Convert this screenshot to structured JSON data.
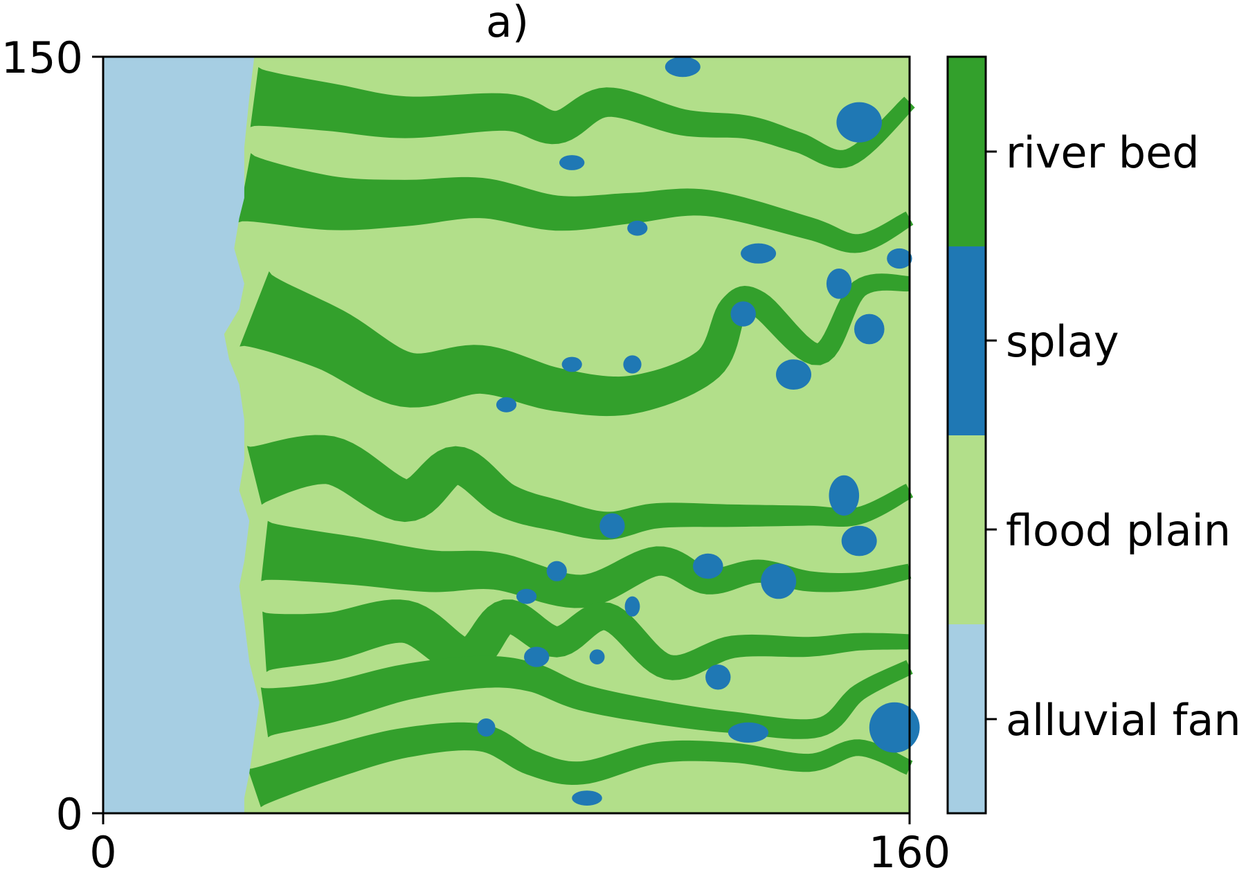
{
  "chart_data": {
    "type": "heatmap",
    "title": "a)",
    "xlabel": "",
    "ylabel": "",
    "xlim": [
      0,
      160
    ],
    "ylim": [
      0,
      150
    ],
    "x_ticks": [
      "0",
      "160"
    ],
    "y_ticks": [
      "0",
      "150"
    ],
    "grid": false,
    "colorbar": {
      "categories": [
        "alluvial fan",
        "flood plain",
        "splay",
        "river bed"
      ],
      "colors": [
        "#a6cee3",
        "#b2df8a",
        "#1f78b4",
        "#33a02c"
      ]
    },
    "channels": [
      {
        "points": [
          [
            30,
            142
          ],
          [
            45,
            140
          ],
          [
            60,
            138
          ],
          [
            80,
            139
          ],
          [
            90,
            136
          ],
          [
            100,
            141
          ],
          [
            115,
            137
          ],
          [
            128,
            136
          ],
          [
            138,
            133
          ],
          [
            148,
            130
          ],
          [
            160,
            141
          ]
        ],
        "width_start": 12,
        "width_end": 3
      },
      {
        "points": [
          [
            28,
            124
          ],
          [
            45,
            121
          ],
          [
            60,
            121
          ],
          [
            75,
            122
          ],
          [
            90,
            119
          ],
          [
            105,
            120
          ],
          [
            120,
            121
          ],
          [
            140,
            116
          ],
          [
            150,
            113
          ],
          [
            160,
            118
          ]
        ],
        "width_start": 14,
        "width_end": 3
      },
      {
        "points": [
          [
            30,
            100
          ],
          [
            45,
            94
          ],
          [
            60,
            86
          ],
          [
            75,
            88
          ],
          [
            90,
            84
          ],
          [
            105,
            83
          ],
          [
            120,
            89
          ],
          [
            125,
            100
          ],
          [
            130,
            101
          ],
          [
            142,
            91
          ],
          [
            150,
            104
          ],
          [
            160,
            105
          ]
        ],
        "width_start": 16,
        "width_end": 3
      },
      {
        "points": [
          [
            30,
            67
          ],
          [
            45,
            70
          ],
          [
            60,
            62
          ],
          [
            70,
            69
          ],
          [
            80,
            62
          ],
          [
            90,
            59
          ],
          [
            100,
            57
          ],
          [
            110,
            59
          ],
          [
            125,
            59
          ],
          [
            140,
            59
          ],
          [
            150,
            59
          ],
          [
            160,
            64
          ]
        ],
        "width_start": 12,
        "width_end": 3
      },
      {
        "points": [
          [
            32,
            52
          ],
          [
            50,
            50
          ],
          [
            65,
            48
          ],
          [
            78,
            48
          ],
          [
            95,
            44
          ],
          [
            110,
            50
          ],
          [
            120,
            46
          ],
          [
            130,
            48
          ],
          [
            140,
            46
          ],
          [
            150,
            46
          ],
          [
            160,
            48
          ]
        ],
        "width_start": 12,
        "width_end": 3
      },
      {
        "points": [
          [
            32,
            34
          ],
          [
            45,
            35
          ],
          [
            60,
            38
          ],
          [
            72,
            31
          ],
          [
            80,
            39
          ],
          [
            90,
            34
          ],
          [
            100,
            39
          ],
          [
            112,
            29
          ],
          [
            125,
            33
          ],
          [
            140,
            33
          ],
          [
            150,
            34
          ],
          [
            160,
            34
          ]
        ],
        "width_start": 12,
        "width_end": 3
      },
      {
        "points": [
          [
            32,
            20
          ],
          [
            45,
            22
          ],
          [
            60,
            26
          ],
          [
            75,
            28
          ],
          [
            85,
            27
          ],
          [
            95,
            23
          ],
          [
            110,
            20
          ],
          [
            125,
            18
          ],
          [
            142,
            17
          ],
          [
            150,
            24
          ],
          [
            160,
            29
          ]
        ],
        "width_start": 10,
        "width_end": 3
      },
      {
        "points": [
          [
            30,
            5
          ],
          [
            45,
            10
          ],
          [
            60,
            14
          ],
          [
            75,
            15
          ],
          [
            85,
            10
          ],
          [
            95,
            8
          ],
          [
            110,
            12
          ],
          [
            125,
            12
          ],
          [
            140,
            10
          ],
          [
            150,
            13
          ],
          [
            160,
            9
          ]
        ],
        "width_start": 8,
        "width_end": 3
      }
    ],
    "splays": [
      [
        115,
        148,
        3.5,
        2.0
      ],
      [
        93,
        129,
        2.5,
        1.5
      ],
      [
        150,
        137,
        4.5,
        4.0
      ],
      [
        106,
        116,
        2.0,
        1.5
      ],
      [
        130,
        111,
        3.5,
        2.0
      ],
      [
        158,
        110,
        2.5,
        2.0
      ],
      [
        146,
        105,
        2.5,
        3.0
      ],
      [
        127,
        99,
        2.5,
        2.5
      ],
      [
        152,
        96,
        3.0,
        3.0
      ],
      [
        137,
        87,
        3.5,
        3.0
      ],
      [
        93,
        89,
        2.0,
        1.5
      ],
      [
        105,
        89,
        1.8,
        1.8
      ],
      [
        80,
        81,
        2.0,
        1.5
      ],
      [
        147,
        63,
        3.0,
        4.0
      ],
      [
        101,
        57,
        2.5,
        2.5
      ],
      [
        150,
        54,
        3.5,
        3.0
      ],
      [
        120,
        49,
        3.0,
        2.5
      ],
      [
        90,
        48,
        2.0,
        2.0
      ],
      [
        134,
        46,
        3.5,
        3.5
      ],
      [
        84,
        43,
        2.0,
        1.5
      ],
      [
        105,
        41,
        1.5,
        2.0
      ],
      [
        86,
        31,
        2.5,
        2.0
      ],
      [
        98,
        31,
        1.5,
        1.5
      ],
      [
        122,
        27,
        2.5,
        2.5
      ],
      [
        157,
        17,
        5.0,
        5.0
      ],
      [
        128,
        16,
        4.0,
        2.0
      ],
      [
        76,
        17,
        1.8,
        1.8
      ],
      [
        96,
        3,
        3.0,
        1.5
      ]
    ]
  }
}
